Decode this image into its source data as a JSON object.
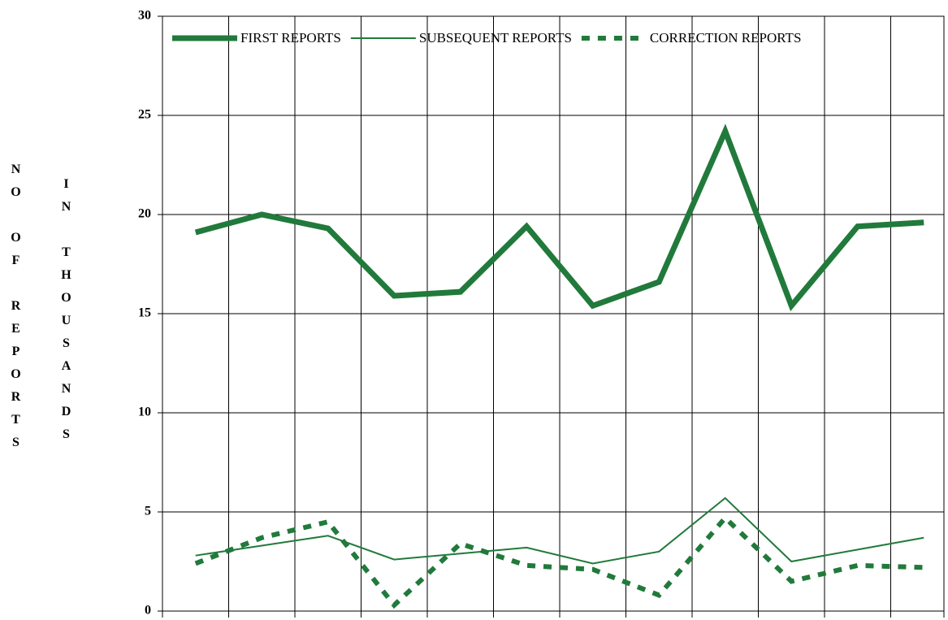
{
  "chart_data": {
    "type": "line",
    "y_label_lines": [
      "NO OF REPORTS",
      "IN THOUSANDS"
    ],
    "categories": [
      null,
      null,
      null,
      null,
      null,
      null,
      null,
      null,
      null,
      null,
      null,
      null
    ],
    "series": [
      {
        "name": "FIRST REPORTS",
        "color": "#217a3b",
        "style": "thick",
        "values": [
          19.1,
          20.0,
          19.3,
          15.9,
          16.1,
          19.4,
          15.4,
          16.6,
          24.2,
          15.4,
          19.4,
          19.6
        ]
      },
      {
        "name": "SUBSEQUENT REPORTS",
        "color": "#217a3b",
        "style": "thin",
        "values": [
          2.8,
          3.3,
          3.8,
          2.6,
          2.9,
          3.2,
          2.4,
          3.0,
          5.7,
          2.5,
          3.1,
          3.7
        ]
      },
      {
        "name": "CORRECTION REPORTS",
        "color": "#217a3b",
        "style": "dashed",
        "values": [
          2.4,
          3.7,
          4.5,
          0.3,
          3.4,
          2.3,
          2.1,
          0.8,
          4.7,
          1.5,
          2.3,
          2.2
        ]
      }
    ],
    "ylim": [
      0,
      30
    ],
    "yticks": [
      0,
      5,
      10,
      15,
      20,
      25,
      30
    ],
    "grid": true,
    "legend": "top"
  }
}
